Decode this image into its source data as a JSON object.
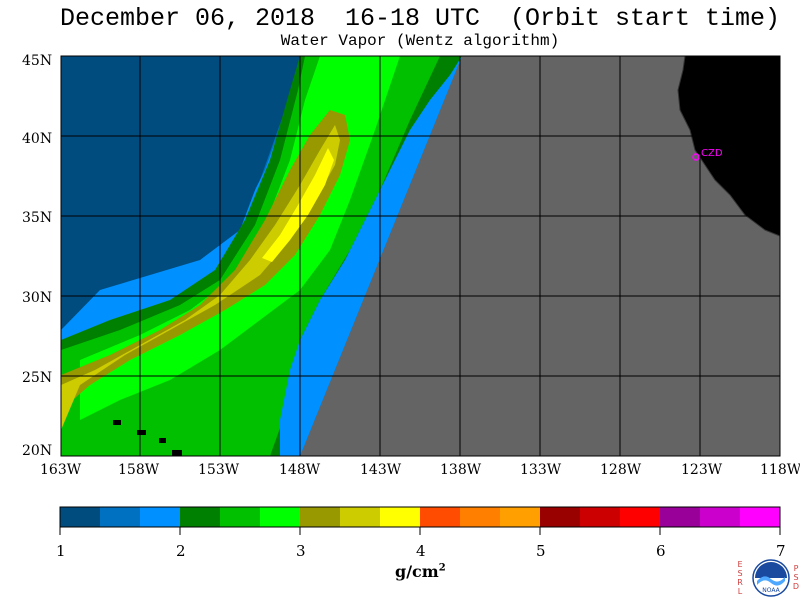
{
  "title": "December 06, 2018  16-18 UTC  (Orbit start time)",
  "subtitle": "Water Vapor (Wentz algorithm)",
  "map": {
    "lat_labels": [
      "45N",
      "40N",
      "35N",
      "30N",
      "25N",
      "20N"
    ],
    "lon_labels": [
      "163W",
      "158W",
      "153W",
      "148W",
      "143W",
      "138W",
      "133W",
      "128W",
      "123W",
      "118W"
    ],
    "station_label": "CZD",
    "colors": {
      "land": "#000000",
      "no_data": "#646464",
      "grid": "#000000",
      "station": "#ff00ff"
    }
  },
  "colorbar": {
    "tick_labels": [
      "1",
      "2",
      "3",
      "4",
      "5",
      "6",
      "7"
    ],
    "units": "g/cm",
    "units_sup": "2",
    "colors": [
      "#004c7f",
      "#0070c0",
      "#0090ff",
      "#008000",
      "#00c000",
      "#00ff00",
      "#989800",
      "#cccc00",
      "#ffff00",
      "#ff4c00",
      "#ff7f00",
      "#ffa000",
      "#990000",
      "#cc0000",
      "#ff0000",
      "#990099",
      "#cc00cc",
      "#ff00ff"
    ]
  },
  "logo": {
    "left_letters": [
      "E",
      "S",
      "R",
      "L"
    ],
    "right_letters": [
      "P",
      "S",
      "D"
    ],
    "center_text": "NOAA"
  }
}
